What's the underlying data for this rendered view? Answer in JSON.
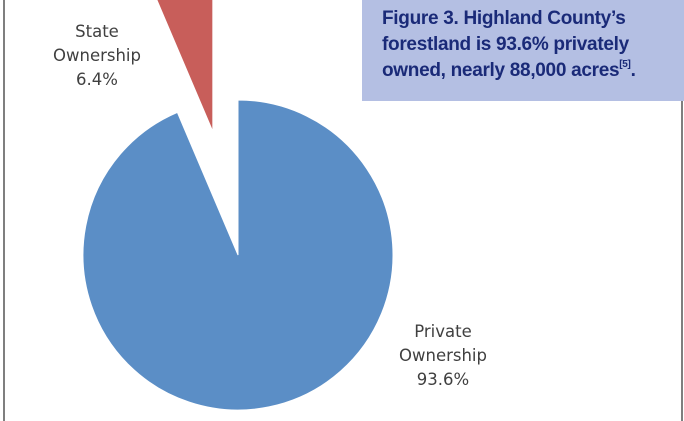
{
  "caption": {
    "line1": "Figure 3. Highland County’s",
    "line2": "forestland is 93.6% privately",
    "line3": "owned, nearly 88,000 acres",
    "ref": "[5]",
    "end": "."
  },
  "labels": {
    "state": {
      "line1": "State",
      "line2": "Ownership",
      "value": "6.4%"
    },
    "private": {
      "line1": "Private",
      "line2": "Ownership",
      "value": "93.6%"
    }
  },
  "colors": {
    "private": "#5b8ec6",
    "state": "#c85e5a",
    "caption_bg": "#b4bfe3",
    "caption_text": "#1a2a78"
  },
  "chart_data": {
    "type": "pie",
    "title": "Figure 3. Highland County’s forestland is 93.6% privately owned, nearly 88,000 acres[5].",
    "categories": [
      "Private Ownership",
      "State Ownership"
    ],
    "values": [
      93.6,
      6.4
    ],
    "exploded": [
      "State Ownership"
    ]
  }
}
